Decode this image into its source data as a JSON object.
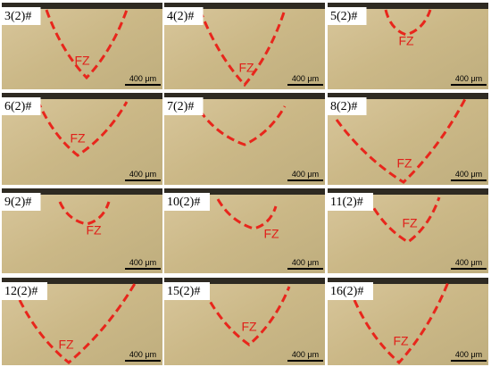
{
  "panels": [
    {
      "label": "3(2)#",
      "zone": "FZ",
      "scale": "400 μm"
    },
    {
      "label": "4(2)#",
      "zone": "FZ",
      "scale": "400 μm"
    },
    {
      "label": "5(2)#",
      "zone": "FZ",
      "scale": "400 μm"
    },
    {
      "label": "6(2)#",
      "zone": "FZ",
      "scale": "400 μm"
    },
    {
      "label": "7(2)#",
      "scale": "400 μm"
    },
    {
      "label": "8(2)#",
      "zone": "FZ",
      "scale": "400 μm"
    },
    {
      "label": "9(2)#",
      "zone": "FZ",
      "scale": "400 μm"
    },
    {
      "label": "10(2)#",
      "zone": "FZ",
      "scale": "400 μm"
    },
    {
      "label": "11(2)#",
      "zone": "FZ",
      "scale": "400 μm"
    },
    {
      "label": "12(2)#",
      "zone": "FZ",
      "scale": "400 μm"
    },
    {
      "label": "15(2)#",
      "zone": "FZ",
      "scale": "400 μm"
    },
    {
      "label": "16(2)#",
      "zone": "FZ",
      "scale": "400 μm"
    }
  ]
}
